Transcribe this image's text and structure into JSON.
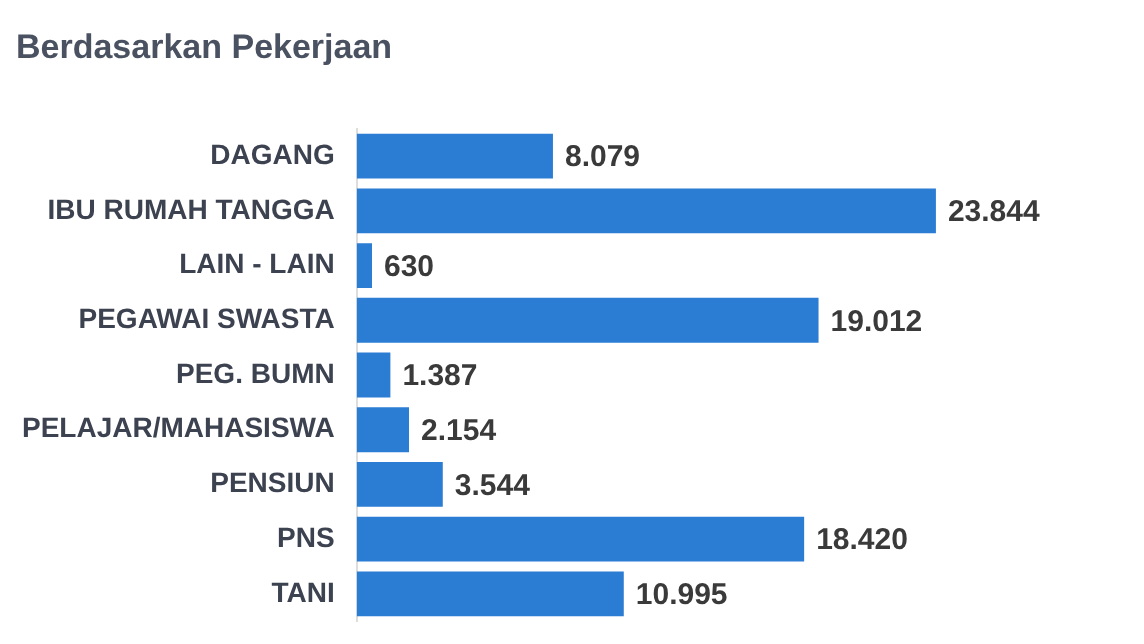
{
  "chart_data": {
    "type": "bar",
    "orientation": "horizontal",
    "title": "Berdasarkan Pekerjaan",
    "categories": [
      "DAGANG",
      "IBU RUMAH TANGGA",
      "LAIN - LAIN",
      "PEGAWAI SWASTA",
      "PEG. BUMN",
      "PELAJAR/MAHASISWA",
      "PENSIUN",
      "PNS",
      "TANI"
    ],
    "values": [
      8079,
      23844,
      630,
      19012,
      1387,
      2154,
      3544,
      18420,
      10995
    ],
    "value_labels": [
      "8.079",
      "23.844",
      "630",
      "19.012",
      "1.387",
      "2.154",
      "3.544",
      "18.420",
      "10.995"
    ],
    "color": "#2b7dd3"
  }
}
